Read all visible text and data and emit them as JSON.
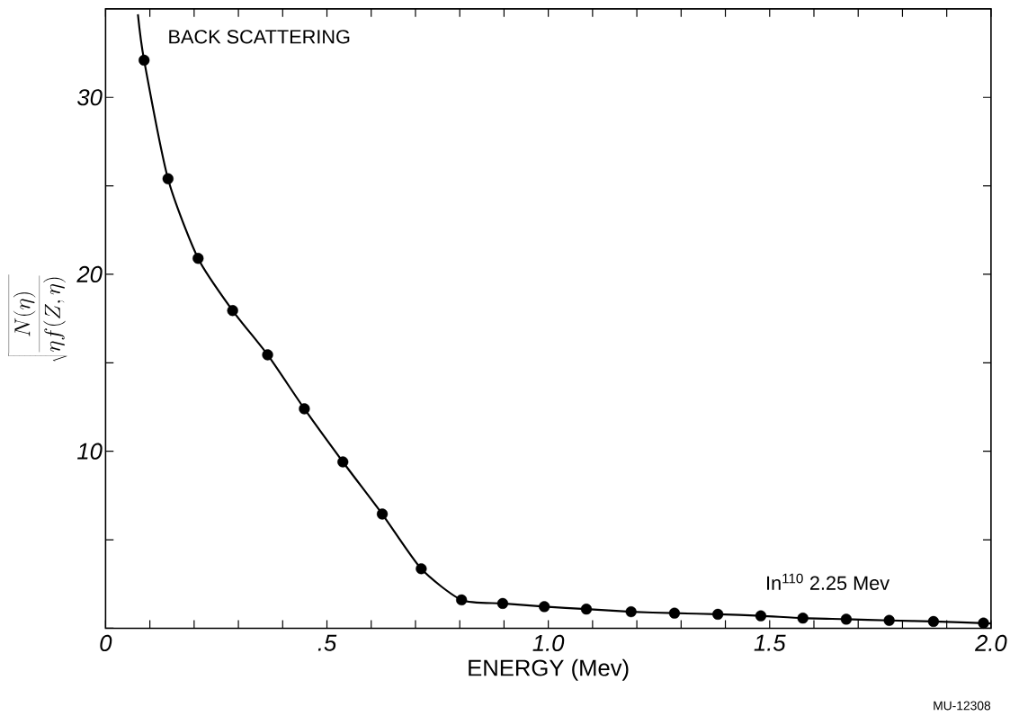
{
  "chart_data": {
    "type": "scatter",
    "xlabel": "ENERGY (Mev)",
    "ylabel": "\\sqrt{\\frac{N(\\eta)}{\\eta f(Z,\\eta)}}",
    "annotations": [
      "BACK SCATTERING",
      "In$^{110}$   2.25 Mev",
      "MU-12308"
    ],
    "x": [
      0.087,
      0.141,
      0.209,
      0.287,
      0.366,
      0.449,
      0.536,
      0.625,
      0.713,
      0.804,
      0.897,
      0.991,
      1.086,
      1.187,
      1.285,
      1.383,
      1.48,
      1.575,
      1.673,
      1.77,
      1.87,
      1.983
    ],
    "series": [
      {
        "marker": "circle",
        "color": "#000000",
        "values": [
          32.1,
          25.4,
          20.9,
          17.95,
          15.45,
          12.4,
          9.4,
          6.45,
          3.36,
          1.6,
          1.4,
          1.22,
          1.08,
          0.93,
          0.85,
          0.79,
          0.7,
          0.57,
          0.51,
          0.44,
          0.38,
          0.29
        ]
      },
      {
        "type": "line",
        "marker": "none",
        "line_style": "solid",
        "color": "#000000",
        "x": [
          0.073,
          0.087,
          0.141,
          0.209,
          0.287,
          0.366,
          0.449,
          0.536,
          0.625,
          0.713,
          0.804,
          0.897,
          0.991,
          1.086,
          1.187,
          1.285,
          1.383,
          1.48,
          1.575,
          1.673,
          1.77,
          1.87,
          2.0
        ],
        "values": [
          34.7,
          32.1,
          25.4,
          20.9,
          17.95,
          15.45,
          12.4,
          9.4,
          6.45,
          3.36,
          1.6,
          1.4,
          1.22,
          1.08,
          0.93,
          0.85,
          0.79,
          0.7,
          0.57,
          0.51,
          0.44,
          0.38,
          0.27
        ]
      }
    ],
    "xlim": [
      0,
      2.0
    ],
    "ylim": [
      0,
      35
    ],
    "xticks": [
      {
        "value": 0,
        "label": "0"
      },
      {
        "value": 0.1,
        "label": null
      },
      {
        "value": 0.2,
        "label": null
      },
      {
        "value": 0.3,
        "label": null
      },
      {
        "value": 0.4,
        "label": null
      },
      {
        "value": 0.5,
        "label": ".5"
      },
      {
        "value": 0.6,
        "label": null
      },
      {
        "value": 0.7,
        "label": null
      },
      {
        "value": 0.8,
        "label": null
      },
      {
        "value": 0.9,
        "label": null
      },
      {
        "value": 1.0,
        "label": "1.0"
      },
      {
        "value": 1.1,
        "label": null
      },
      {
        "value": 1.2,
        "label": null
      },
      {
        "value": 1.3,
        "label": null
      },
      {
        "value": 1.4,
        "label": null
      },
      {
        "value": 1.5,
        "label": "1.5"
      },
      {
        "value": 1.6,
        "label": null
      },
      {
        "value": 1.7,
        "label": null
      },
      {
        "value": 1.8,
        "label": null
      },
      {
        "value": 1.9,
        "label": null
      },
      {
        "value": 2.0,
        "label": "2.0"
      }
    ],
    "yticks": [
      {
        "value": 0,
        "label": null
      },
      {
        "value": 5,
        "label": null
      },
      {
        "value": 10,
        "label": "10"
      },
      {
        "value": 15,
        "label": null
      },
      {
        "value": 20,
        "label": "20"
      },
      {
        "value": 25,
        "label": null
      },
      {
        "value": 30,
        "label": "30"
      }
    ]
  }
}
